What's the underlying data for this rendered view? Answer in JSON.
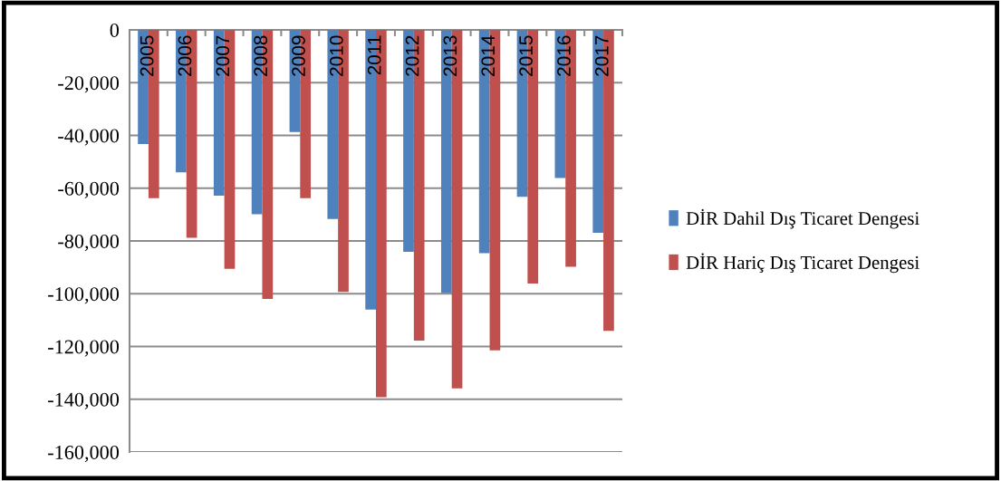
{
  "chart_data": {
    "type": "bar",
    "categories": [
      "2005",
      "2006",
      "2007",
      "2008",
      "2009",
      "2010",
      "2011",
      "2012",
      "2013",
      "2014",
      "2015",
      "2016",
      "2017"
    ],
    "series": [
      {
        "name": "DİR Dahil Dış Ticaret Dengesi",
        "color": "#4f81bd",
        "values": [
          -43300,
          -54000,
          -62800,
          -69900,
          -38700,
          -71700,
          -106000,
          -84100,
          -99700,
          -84600,
          -63300,
          -56100,
          -76900
        ]
      },
      {
        "name": "DİR Hariç Dış Ticaret Dengesi",
        "color": "#c0504d",
        "values": [
          -63800,
          -78800,
          -90600,
          -102000,
          -63800,
          -99300,
          -139200,
          -117800,
          -135900,
          -121500,
          -96100,
          -89800,
          -114100
        ]
      }
    ],
    "ylim": [
      -160000,
      0
    ],
    "yticks": [
      {
        "value": -160000,
        "label": "-160,000"
      },
      {
        "value": -140000,
        "label": "-140,000"
      },
      {
        "value": -120000,
        "label": "-120,000"
      },
      {
        "value": -100000,
        "label": "-100,000"
      },
      {
        "value": -80000,
        "label": "-80,000"
      },
      {
        "value": -60000,
        "label": "-60,000"
      },
      {
        "value": -40000,
        "label": "-40,000"
      },
      {
        "value": -20000,
        "label": "-20,000"
      },
      {
        "value": 0,
        "label": "0"
      }
    ],
    "grid": "y",
    "legend": "right"
  }
}
